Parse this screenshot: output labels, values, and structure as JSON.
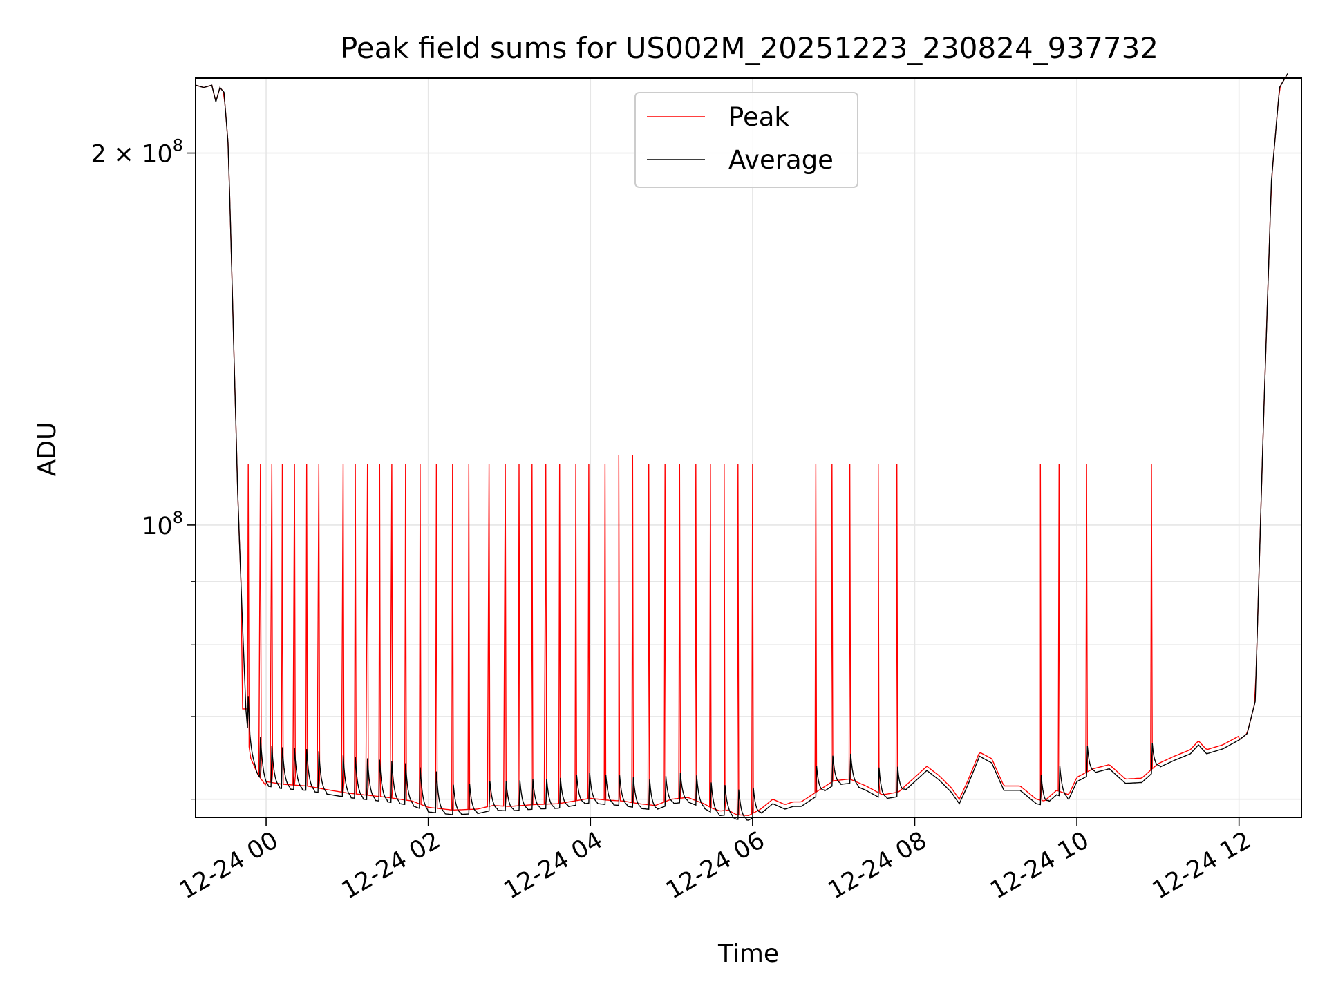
{
  "chart_data": {
    "type": "line",
    "title": "Peak field sums for US002M_20251223_230824_937732",
    "xlabel": "Time",
    "ylabel": "ADU",
    "yscale": "log",
    "grid": true,
    "legend_position": "upper-center",
    "x_unit": "hours since 2025-12-24 00:00",
    "xlim": [
      -0.87,
      12.77
    ],
    "ylim": [
      58000000,
      230000000
    ],
    "x_ticks": [
      {
        "value": 0,
        "label": "12-24 00"
      },
      {
        "value": 2,
        "label": "12-24 02"
      },
      {
        "value": 4,
        "label": "12-24 04"
      },
      {
        "value": 6,
        "label": "12-24 06"
      },
      {
        "value": 8,
        "label": "12-24 08"
      },
      {
        "value": 10,
        "label": "12-24 10"
      },
      {
        "value": 12,
        "label": "12-24 12"
      }
    ],
    "y_major_ticks": [
      {
        "value": 100000000,
        "base": "10",
        "exp": "8"
      },
      {
        "value": 200000000,
        "mantissa": "2",
        "times": "×",
        "base": "10",
        "exp": "8"
      }
    ],
    "y_minor_ticks": [
      60000000,
      70000000,
      80000000,
      90000000
    ],
    "average_series": {
      "name": "Average",
      "color": "#000000",
      "x": [
        -0.87,
        -0.77,
        -0.67,
        -0.62,
        -0.57,
        -0.52,
        -0.47,
        -0.44,
        -0.4,
        -0.35,
        -0.3,
        -0.25,
        -0.2,
        -0.1,
        0.0,
        0.2,
        0.5,
        0.8,
        1.0,
        1.2,
        1.5,
        1.8,
        2.0,
        2.3,
        2.6,
        2.8,
        3.0,
        3.3,
        3.6,
        3.8,
        4.0,
        4.2,
        4.4,
        4.6,
        4.8,
        5.0,
        5.2,
        5.4,
        5.5,
        5.6,
        5.7,
        5.8,
        5.95,
        6.1,
        6.25,
        6.4,
        6.5,
        6.6,
        6.8,
        7.0,
        7.2,
        7.4,
        7.6,
        7.8,
        8.0,
        8.15,
        8.3,
        8.45,
        8.55,
        8.65,
        8.8,
        8.95,
        9.1,
        9.3,
        9.5,
        9.6,
        9.75,
        9.9,
        10.0,
        10.2,
        10.4,
        10.6,
        10.8,
        11.0,
        11.2,
        11.4,
        11.5,
        11.6,
        11.8,
        12.0,
        12.1,
        12.2,
        12.3,
        12.4,
        12.5,
        12.6
      ],
      "y": [
        227000000,
        226000000,
        227000000,
        220000000,
        226000000,
        224000000,
        204000000,
        176000000,
        140000000,
        106000000,
        86000000,
        71000000,
        65000000,
        62800000,
        61500000,
        61200000,
        61000000,
        60500000,
        60200000,
        60000000,
        59700000,
        59300000,
        58600000,
        58300000,
        58400000,
        58800000,
        58700000,
        58900000,
        59000000,
        59300000,
        59600000,
        59400000,
        59300000,
        59000000,
        58800000,
        59500000,
        59700000,
        59000000,
        58500000,
        58200000,
        58300000,
        57800000,
        57700000,
        58400000,
        59500000,
        58900000,
        59200000,
        59200000,
        60400000,
        61600000,
        61800000,
        61000000,
        60000000,
        60300000,
        62000000,
        63300000,
        62200000,
        60800000,
        59500000,
        61500000,
        65000000,
        64200000,
        61000000,
        61000000,
        59500000,
        59300000,
        60500000,
        60000000,
        62000000,
        63000000,
        63500000,
        61800000,
        61900000,
        63600000,
        64500000,
        65300000,
        66400000,
        65300000,
        65900000,
        67000000,
        67800000,
        72000000,
        120000000,
        190000000,
        226000000,
        232000000
      ]
    },
    "peak_series": {
      "name": "Peak",
      "color": "#ff0000",
      "baseline_offset": 500000,
      "spike_value": 112000000,
      "spike_times": [
        -0.22,
        -0.07,
        0.07,
        0.2,
        0.35,
        0.5,
        0.65,
        0.95,
        1.1,
        1.25,
        1.4,
        1.55,
        1.72,
        1.9,
        2.1,
        2.3,
        2.5,
        2.75,
        2.95,
        3.12,
        3.28,
        3.45,
        3.62,
        3.82,
        3.98,
        4.18,
        4.35,
        4.52,
        4.72,
        4.92,
        5.1,
        5.3,
        5.48,
        5.65,
        5.82,
        6.0,
        6.78,
        6.98,
        7.2,
        7.55,
        7.78,
        9.55,
        9.78,
        10.12,
        10.92
      ],
      "raised_spike_times": [
        4.35,
        4.52
      ],
      "raised_spike_value": 114000000,
      "flat_segment": {
        "x": [
          -0.3,
          -0.22
        ],
        "y": 71000000
      }
    },
    "legend": [
      {
        "label": "Peak",
        "color": "#ff0000"
      },
      {
        "label": "Average",
        "color": "#000000"
      }
    ]
  }
}
